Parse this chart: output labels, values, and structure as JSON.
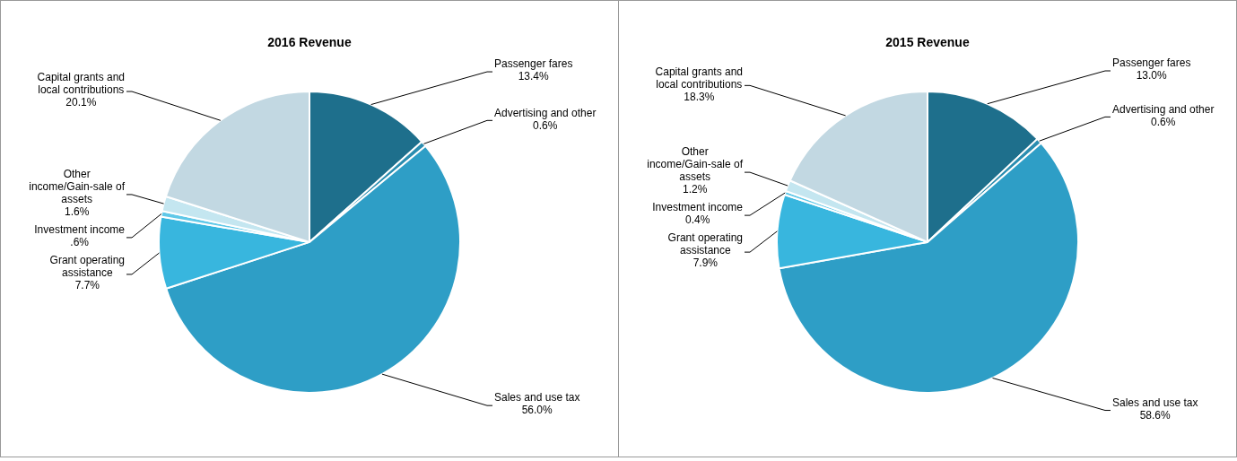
{
  "chart_data": [
    {
      "type": "pie",
      "title": "2016 Revenue",
      "categories": [
        "Passenger fares",
        "Advertising and other",
        "Sales and use tax",
        "Grant operating assistance",
        "Investment income",
        "Other income/Gain-sale of assets",
        "Capital grants and local contributions"
      ],
      "values": [
        13.4,
        0.6,
        56.0,
        7.7,
        0.6,
        1.6,
        20.1
      ],
      "value_labels": [
        "13.4%",
        "0.6%",
        "56.0%",
        "7.7%",
        ".6%",
        "1.6%",
        "20.1%"
      ],
      "colors": [
        "#1e6f8c",
        "#2a8db0",
        "#2e9ec6",
        "#38b6de",
        "#5fc8e8",
        "#c4e6f0",
        "#c2d8e2"
      ]
    },
    {
      "type": "pie",
      "title": "2015 Revenue",
      "categories": [
        "Passenger fares",
        "Advertising and other",
        "Sales and use tax",
        "Grant operating assistance",
        "Investment income",
        "Other income/Gain-sale of assets",
        "Capital grants and local contributions"
      ],
      "values": [
        13.0,
        0.6,
        58.6,
        7.9,
        0.4,
        1.2,
        18.3
      ],
      "value_labels": [
        "13.0%",
        "0.6%",
        "58.6%",
        "7.9%",
        "0.4%",
        "1.2%",
        "18.3%"
      ],
      "colors": [
        "#1e6f8c",
        "#2a8db0",
        "#2e9ec6",
        "#38b6de",
        "#5fc8e8",
        "#c4e6f0",
        "#c2d8e2"
      ]
    }
  ]
}
